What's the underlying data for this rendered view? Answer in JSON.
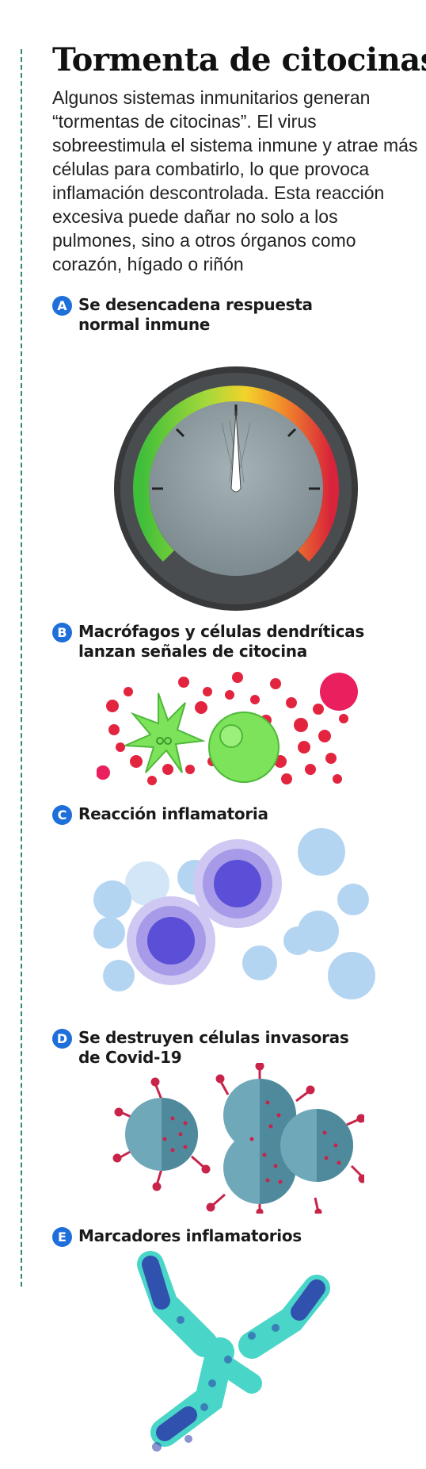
{
  "title": "Tormenta de citocinas",
  "intro": "Algunos sistemas inmunitarios generan “tormentas de citocinas”. El virus sobreestimula el sistema inmune y atrae más células para combatirlo, lo que provoca inflamación descontrolada. Esta reacción excesiva puede dañar no solo a los pulmones, sino a otros órganos como corazón, hígado o riñón",
  "sections": [
    {
      "letter": "A",
      "label": "Se desencadena respuesta normal inmune",
      "illustration": "gauge-icon"
    },
    {
      "letter": "B",
      "label": "Macrófagos y células dendríticas lanzan señales de citocina",
      "illustration": "macrophage-cells-icon"
    },
    {
      "letter": "C",
      "label": "Reacción inflamatoria",
      "illustration": "inflammatory-cells-icon"
    },
    {
      "letter": "D",
      "label": "Se destruyen células invasoras de Covid-19",
      "illustration": "coronavirus-icon"
    },
    {
      "letter": "E",
      "label": "Marcadores inflamatorios",
      "illustration": "antibody-icon"
    }
  ],
  "colors": {
    "badge": "#1e6fd9",
    "accent_line": "#2f8a6a",
    "gauge_green": "#3fbf3a",
    "gauge_yellow": "#f2d32a",
    "gauge_red": "#d8243a",
    "cytokine_red": "#e3243f",
    "macrophage_green": "#7de35a",
    "inflammation_blue": "#9cc8ee",
    "inflammation_purple": "#5a4fd6",
    "virus_teal": "#6fa8b8",
    "virus_spike": "#c8244a",
    "antibody_cyan": "#49d6c8",
    "antibody_navy": "#2b3aa8"
  }
}
